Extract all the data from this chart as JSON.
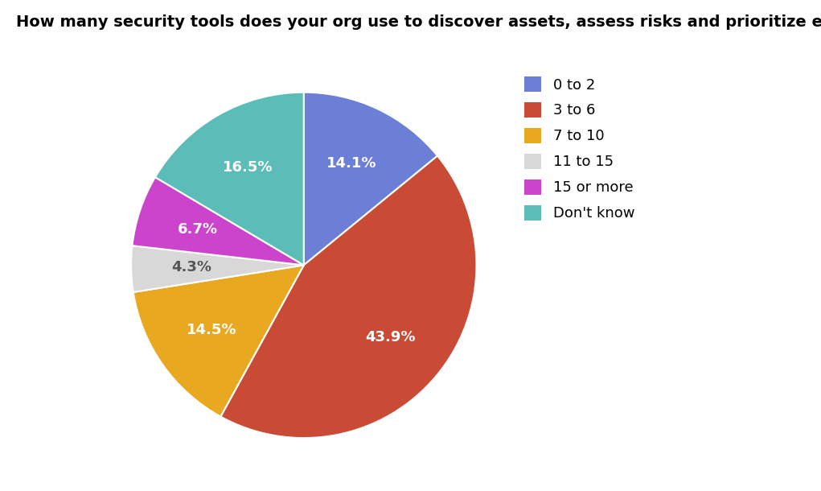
{
  "title": "How many security tools does your org use to discover assets, assess risks and prioritize exposures?",
  "labels": [
    "0 to 2",
    "3 to 6",
    "7 to 10",
    "11 to 15",
    "15 or more",
    "Don't know"
  ],
  "values": [
    14.1,
    43.9,
    14.5,
    4.3,
    6.7,
    16.5
  ],
  "colors": [
    "#6B7FD7",
    "#C94B36",
    "#E8A820",
    "#D8D8D8",
    "#CC44CC",
    "#5BBCB8"
  ],
  "pct_labels": [
    "14.1%",
    "43.9%",
    "14.5%",
    "4.3%",
    "6.7%",
    "16.5%"
  ],
  "pct_colors": [
    "white",
    "white",
    "white",
    "#555555",
    "white",
    "white"
  ],
  "title_fontsize": 14,
  "legend_fontsize": 13,
  "pct_fontsize": 13,
  "background_color": "#FFFFFF"
}
